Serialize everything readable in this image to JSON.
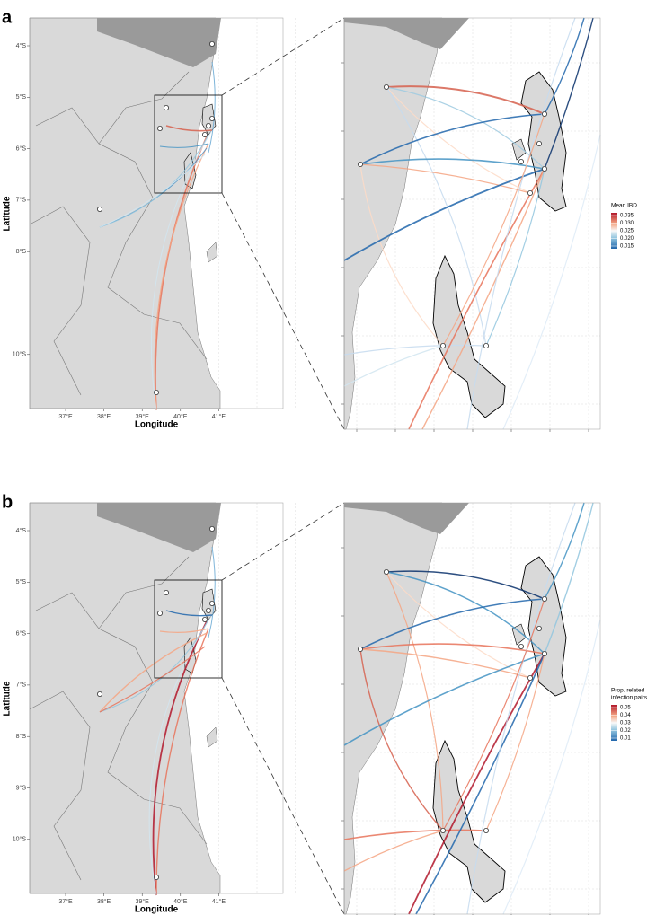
{
  "panels": [
    {
      "label": "a",
      "y_axis_title": "Latitude",
      "x_axis_title": "Longitude",
      "lat_ticks": [
        {
          "value": 4,
          "label": "4°S"
        },
        {
          "value": 5,
          "label": "5°S"
        },
        {
          "value": 6,
          "label": "6°S"
        },
        {
          "value": 7,
          "label": "7°S"
        },
        {
          "value": 8,
          "label": "8°S"
        },
        {
          "value": 10,
          "label": "10°S"
        }
      ],
      "lon_ticks": [
        {
          "value": 37,
          "label": "37°E"
        },
        {
          "value": 38,
          "label": "38°E"
        },
        {
          "value": 39,
          "label": "39°E"
        },
        {
          "value": 40,
          "label": "40°E"
        },
        {
          "value": 41,
          "label": "41°E"
        }
      ],
      "legend": {
        "title_lines": [
          "Mean IBD"
        ],
        "ticks": [
          "0.035",
          "0.030",
          "0.025",
          "0.020",
          "0.015"
        ]
      }
    },
    {
      "label": "b",
      "y_axis_title": "Latitude",
      "x_axis_title": "Longitude",
      "lat_ticks": [
        {
          "value": 4,
          "label": "4°S"
        },
        {
          "value": 5,
          "label": "5°S"
        },
        {
          "value": 6,
          "label": "6°S"
        },
        {
          "value": 7,
          "label": "7°S"
        },
        {
          "value": 8,
          "label": "8°S"
        },
        {
          "value": 9,
          "label": "9°S"
        },
        {
          "value": 10,
          "label": "10°S"
        }
      ],
      "lon_ticks": [
        {
          "value": 37,
          "label": "37°E"
        },
        {
          "value": 38,
          "label": "38°E"
        },
        {
          "value": 39,
          "label": "39°E"
        },
        {
          "value": 40,
          "label": "40°E"
        },
        {
          "value": 41,
          "label": "41°E"
        }
      ],
      "legend": {
        "title_lines": [
          "Prop. related",
          "infection pairs"
        ],
        "ticks": [
          "0.05",
          "0.04",
          "0.03",
          "0.02",
          "0.01"
        ]
      }
    }
  ]
}
